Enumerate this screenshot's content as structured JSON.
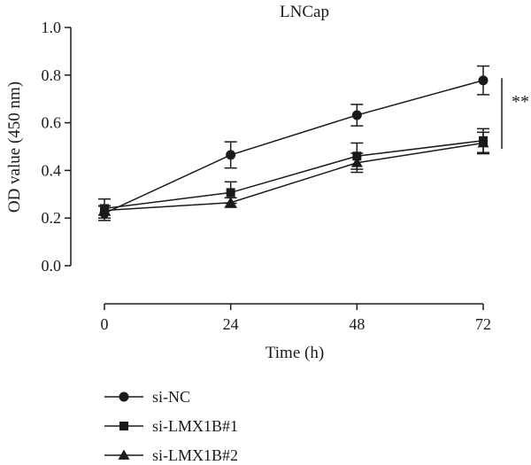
{
  "chart_data": {
    "type": "line",
    "title": "LNCap",
    "xlabel": "Time (h)",
    "ylabel": "OD value (450 nm)",
    "x": [
      0,
      24,
      48,
      72
    ],
    "xticks": [
      "0",
      "24",
      "48",
      "72"
    ],
    "xlim": [
      0,
      72
    ],
    "yticks": [
      "0.0",
      "0.2",
      "0.4",
      "0.6",
      "0.8",
      "1.0"
    ],
    "ylim": [
      0,
      1.0
    ],
    "grid": false,
    "legend_position": "bottom-left",
    "significance": {
      "label": "**",
      "from_y": 0.52,
      "to_y": 0.78
    },
    "series": [
      {
        "name": "si-NC",
        "marker": "circle",
        "values": [
          0.22,
          0.465,
          0.632,
          0.778
        ],
        "errors": [
          0.03,
          0.055,
          0.045,
          0.06
        ]
      },
      {
        "name": "si-LMX1B#1",
        "marker": "square",
        "values": [
          0.24,
          0.307,
          0.46,
          0.525
        ],
        "errors": [
          0.04,
          0.045,
          0.055,
          0.05
        ]
      },
      {
        "name": "si-LMX1B#2",
        "marker": "triangle",
        "values": [
          0.232,
          0.265,
          0.432,
          0.515
        ],
        "errors": [
          0.02,
          0.02,
          0.04,
          0.045
        ]
      }
    ]
  }
}
